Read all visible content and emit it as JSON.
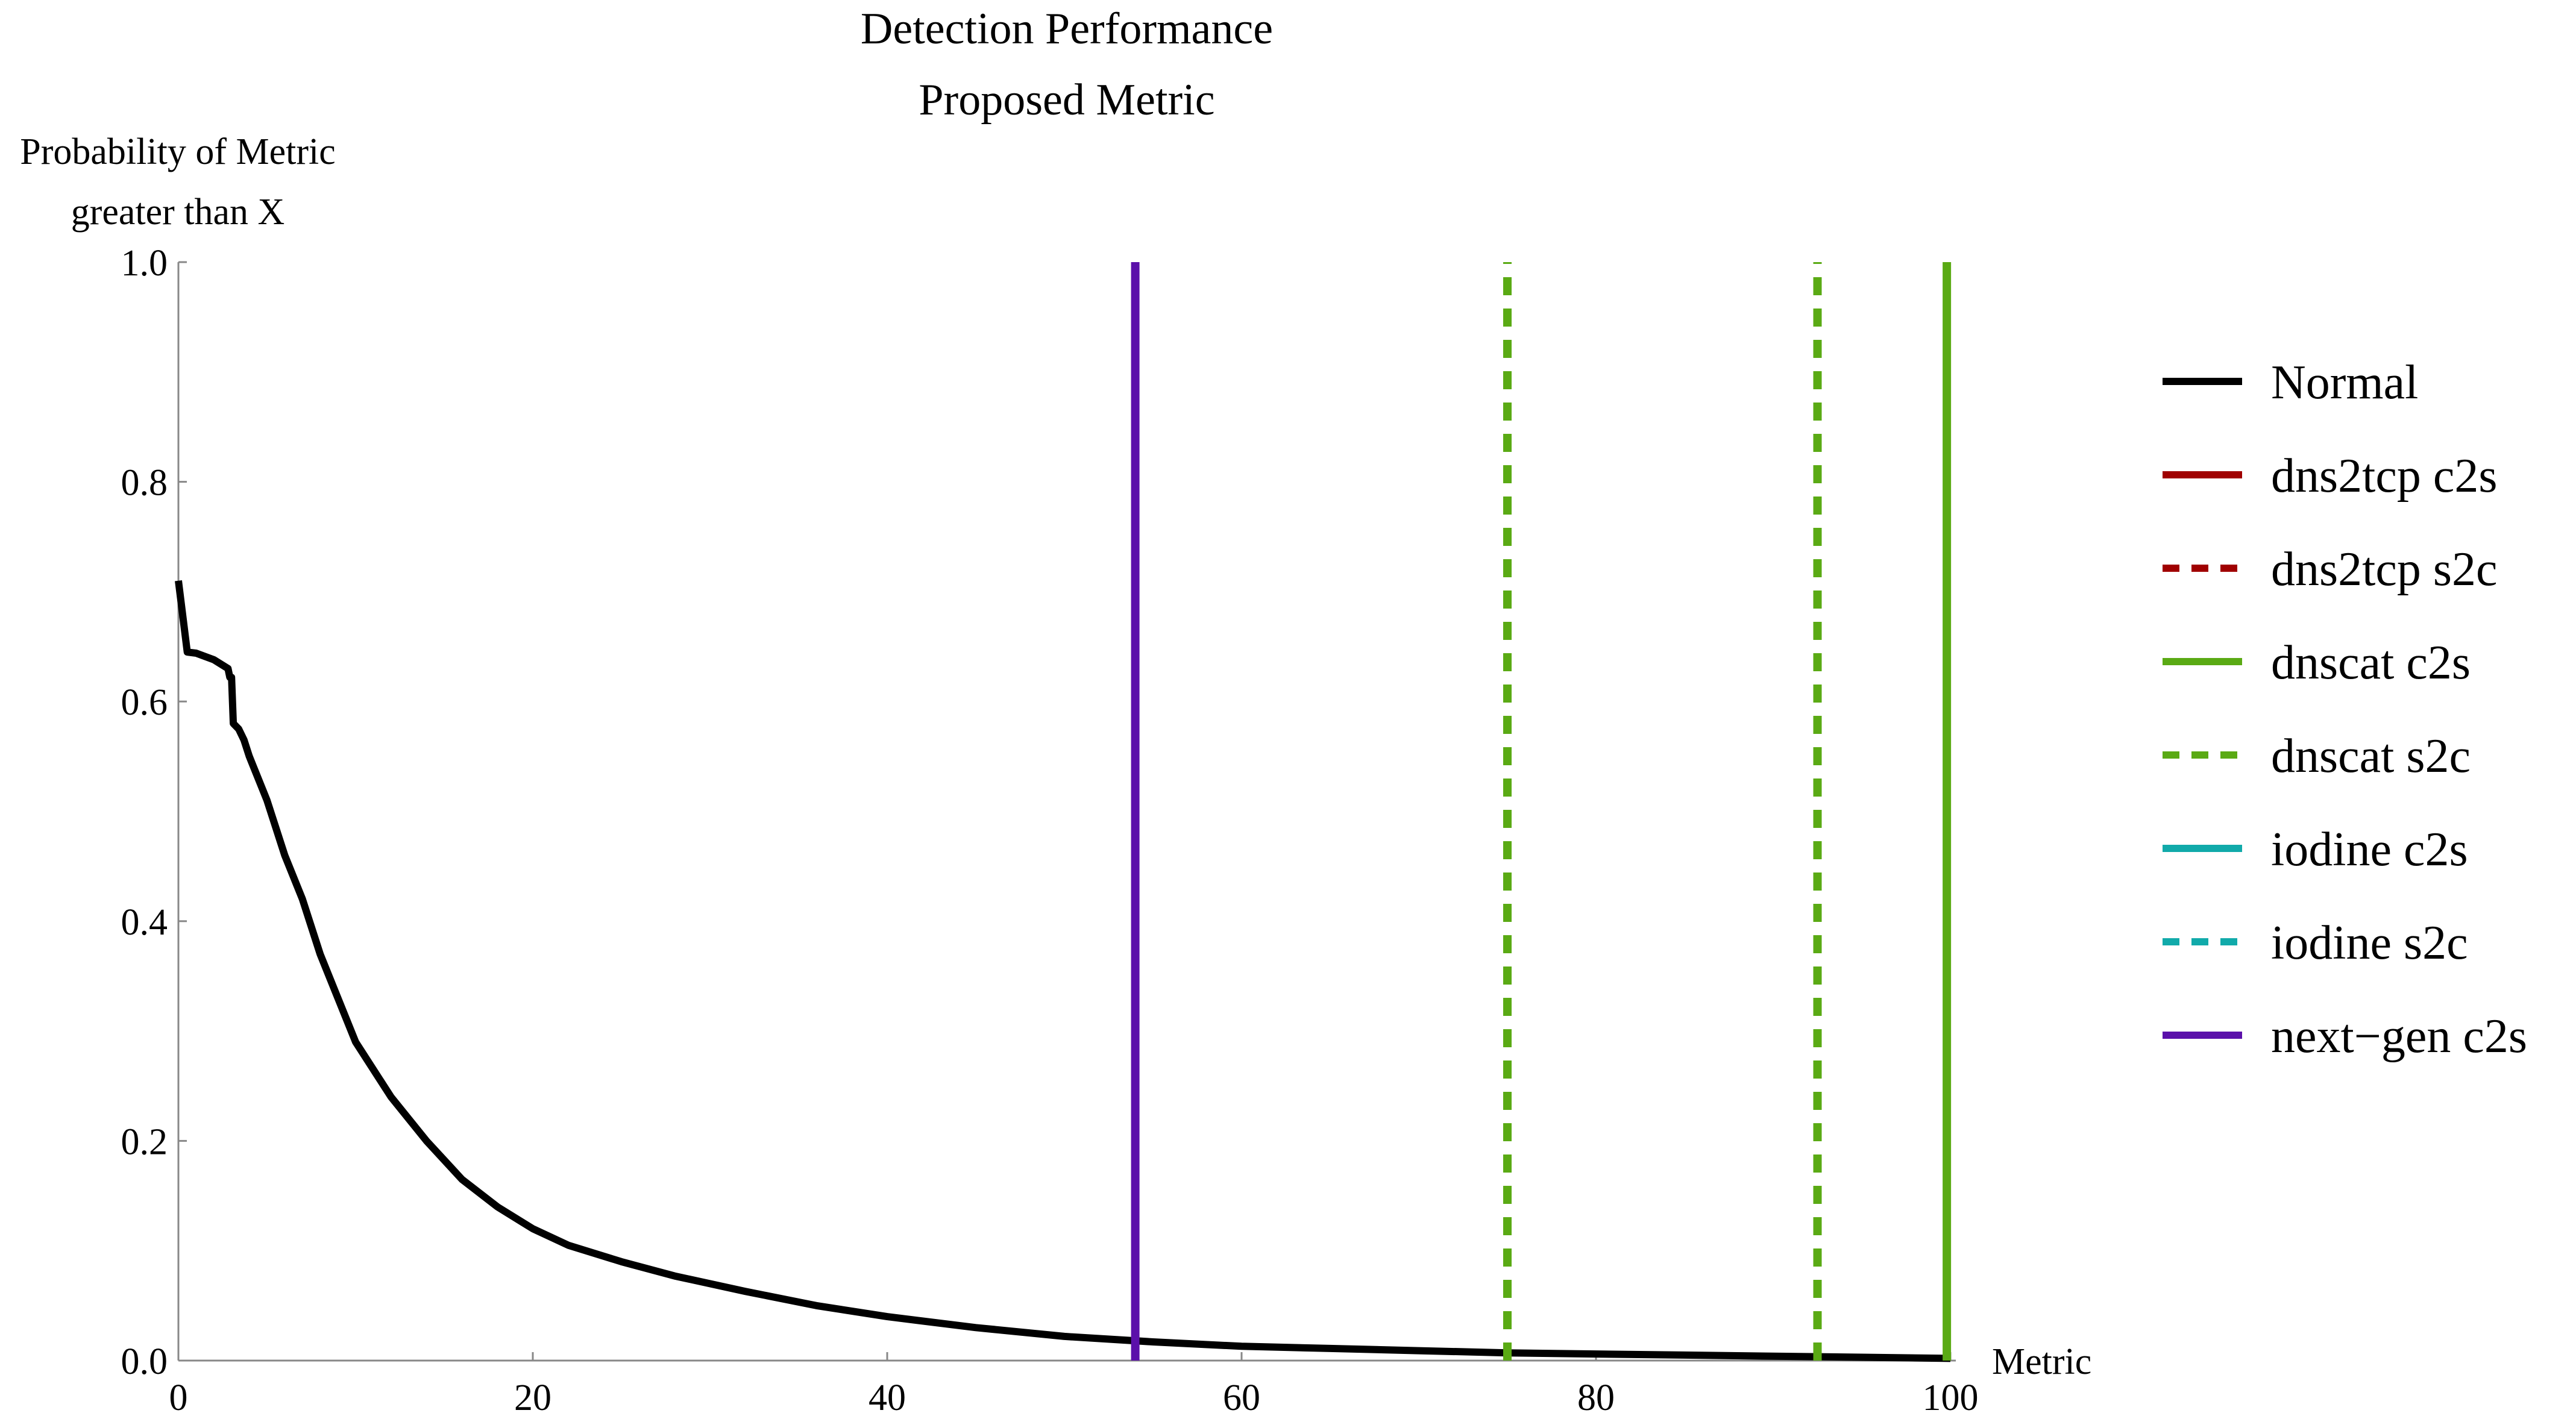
{
  "chart_data": {
    "type": "line",
    "title": "Detection Performance",
    "subtitle": "Proposed Metric",
    "xlabel": "Metric",
    "ylabel_line1": "Probability of Metric",
    "ylabel_line2": "greater than X",
    "xlim": [
      0,
      100
    ],
    "ylim": [
      0,
      1
    ],
    "x_ticks": [
      0,
      20,
      40,
      60,
      80,
      100
    ],
    "y_ticks": [
      0.0,
      0.2,
      0.4,
      0.6,
      0.8,
      1.0
    ],
    "x_tick_labels": [
      "0",
      "20",
      "40",
      "60",
      "80",
      "100"
    ],
    "y_tick_labels": [
      "0.0",
      "0.2",
      "0.4",
      "0.6",
      "0.8",
      "1.0"
    ],
    "grid": false,
    "legend_position": "right",
    "series": [
      {
        "name": "Normal",
        "kind": "curve",
        "color": "#000000",
        "dash": "solid",
        "x": [
          0,
          0.5,
          1,
          2,
          2.8,
          2.9,
          3.0,
          3.1,
          3.4,
          3.7,
          4,
          4.5,
          5,
          5.5,
          6,
          7,
          8,
          9,
          10,
          12,
          14,
          16,
          18,
          20,
          22,
          25,
          28,
          32,
          36,
          40,
          45,
          50,
          55,
          60,
          65,
          70,
          75,
          80,
          85,
          90,
          95,
          100
        ],
        "y": [
          0.71,
          0.645,
          0.644,
          0.638,
          0.63,
          0.622,
          0.622,
          0.58,
          0.575,
          0.565,
          0.55,
          0.53,
          0.51,
          0.485,
          0.46,
          0.42,
          0.37,
          0.33,
          0.29,
          0.24,
          0.2,
          0.165,
          0.14,
          0.12,
          0.105,
          0.09,
          0.077,
          0.063,
          0.05,
          0.04,
          0.03,
          0.022,
          0.017,
          0.013,
          0.011,
          0.009,
          0.007,
          0.006,
          0.005,
          0.004,
          0.003,
          0.002
        ]
      },
      {
        "name": "dns2tcp c2s",
        "kind": "vline",
        "color": "#a00000",
        "dash": "solid",
        "x": [],
        "y": []
      },
      {
        "name": "dns2tcp s2c",
        "kind": "vline",
        "color": "#a00000",
        "dash": "dashed",
        "x": [],
        "y": []
      },
      {
        "name": "dnscat c2s",
        "kind": "vline",
        "color": "#5aaa14",
        "dash": "solid",
        "x": [
          99.8
        ],
        "y": [
          1.0
        ]
      },
      {
        "name": "dnscat s2c",
        "kind": "vline",
        "color": "#5aaa14",
        "dash": "dashed",
        "x": [
          75,
          92.5
        ],
        "y": [
          1.0,
          1.0
        ]
      },
      {
        "name": "iodine c2s",
        "kind": "vline",
        "color": "#11aaaa",
        "dash": "solid",
        "x": [],
        "y": []
      },
      {
        "name": "iodine s2c",
        "kind": "vline",
        "color": "#11aaaa",
        "dash": "dashed",
        "x": [],
        "y": []
      },
      {
        "name": "next−gen c2s",
        "kind": "vline",
        "color": "#5b10aa",
        "dash": "solid",
        "x": [
          54
        ],
        "y": [
          1.0
        ]
      }
    ]
  }
}
